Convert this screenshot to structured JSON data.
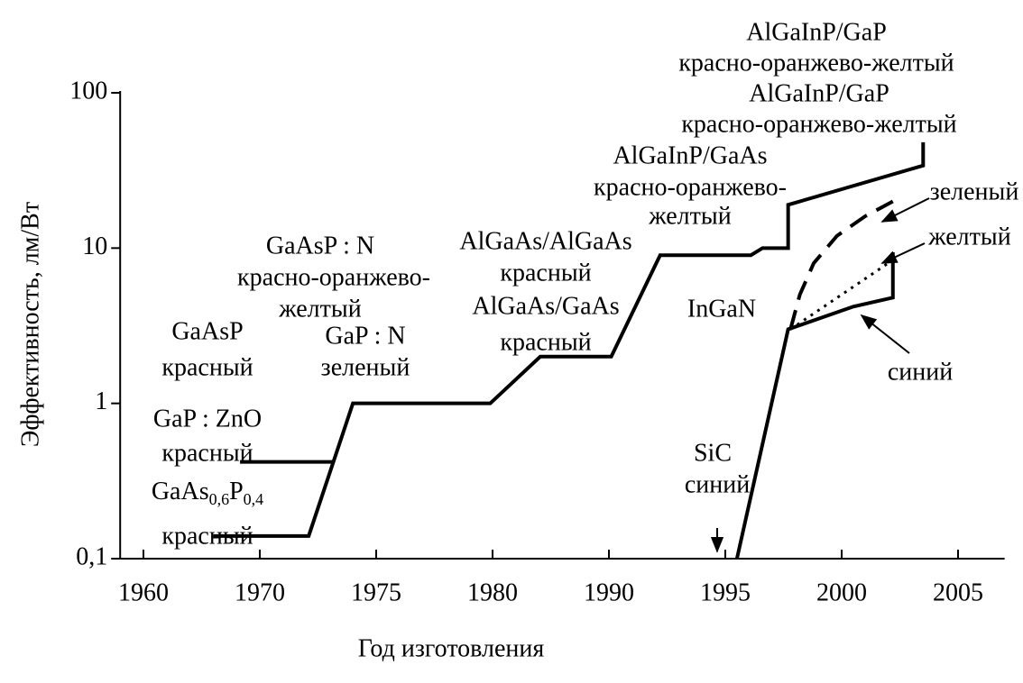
{
  "chart_data": {
    "type": "line",
    "xlabel": "Год изготовления",
    "ylabel": "Эффективность, лм/Вт",
    "xlim": [
      1958,
      2007
    ],
    "xticks": [
      1960,
      1970,
      1975,
      1980,
      1990,
      1995,
      2000,
      2005
    ],
    "ylim": [
      0.1,
      100
    ],
    "yticks": [
      {
        "value": 0.1,
        "label": "0,1"
      },
      1,
      10,
      100
    ],
    "yscale": "log",
    "series": [
      {
        "color": "#000000",
        "style": "solid",
        "x": [
          1966.0,
          1972.1,
          1974.0,
          1979.9,
          1984.1,
          1990.1,
          1992.2,
          1996.1,
          1996.6,
          1997.7,
          1997.7,
          2003.5,
          2003.5
        ],
        "values": [
          0.14,
          0.14,
          1,
          1,
          2,
          2,
          9,
          9,
          10,
          10,
          19,
          34,
          48
        ]
      },
      {
        "color": "#000000",
        "style": "solid",
        "x": [
          1968.3,
          1973.2
        ],
        "values": [
          0.42,
          0.42
        ]
      },
      {
        "color": "#000000",
        "style": "solid",
        "x": [
          1995.5,
          1997.7,
          2000.5,
          2002.2,
          2002.2
        ],
        "values": [
          0.1,
          3.0,
          4.2,
          4.8,
          9.4
        ]
      },
      {
        "color": "#000000",
        "style": "dashed",
        "x": [
          1997.8,
          1998.2,
          1998.8,
          1999.8,
          2001.0,
          2002.2,
          2002.2,
          2002.2
        ],
        "values": [
          3.0,
          5,
          8,
          12,
          16,
          20,
          null,
          40
        ]
      },
      {
        "color": "#000000",
        "style": "dotted",
        "x": [
          1997.8,
          2002.0
        ],
        "values": [
          3.0,
          8
        ]
      }
    ],
    "annotations": [
      {
        "text": "AlGaInP/GaP"
      },
      {
        "text": "красно-оранжево-желтый"
      },
      {
        "text": "AlGaInP/GaP"
      },
      {
        "text": "красно-оранжево-желтый"
      },
      {
        "text": "AlGaInP/GaAs"
      },
      {
        "text": "красно-оранжево-"
      },
      {
        "text": "желтый"
      },
      {
        "text": "зеленый"
      },
      {
        "text": "желтый"
      },
      {
        "text": "синий"
      },
      {
        "text": "InGaN"
      },
      {
        "text": "SiC"
      },
      {
        "text": "синий"
      },
      {
        "text": "AlGaAs/AlGaAs"
      },
      {
        "text": "красный"
      },
      {
        "text": "AlGaAs/GaAs"
      },
      {
        "text": "красный"
      },
      {
        "text": "GaAsP : N"
      },
      {
        "text": "красно-оранжево-"
      },
      {
        "text": "желтый"
      },
      {
        "text": "GaP : N"
      },
      {
        "text": "зеленый"
      },
      {
        "text": "GaAsP"
      },
      {
        "text": "красный"
      },
      {
        "text": "GaP : ZnO"
      },
      {
        "text": "красный"
      },
      {
        "parts": [
          "GaAs",
          "0,6",
          "P",
          "0,4"
        ]
      },
      {
        "text": "красный"
      }
    ]
  }
}
